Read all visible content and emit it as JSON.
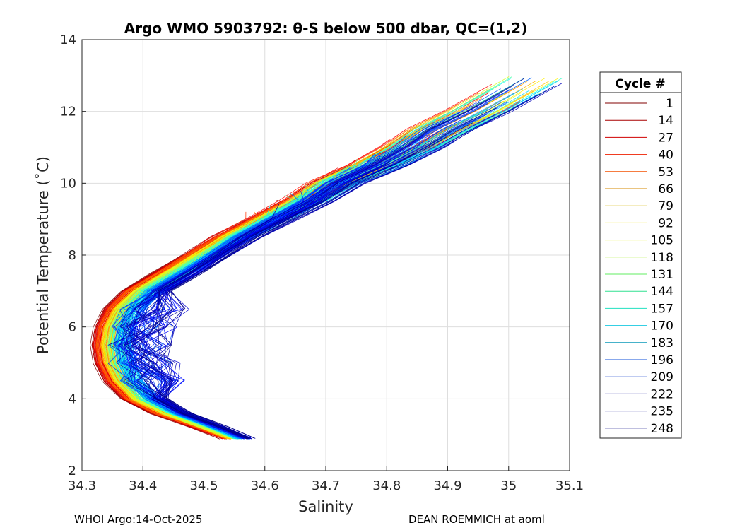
{
  "chart_data": {
    "type": "line",
    "title": "Argo WMO 5903792: θ-S below 500 dbar,  QC=(1,2)",
    "xlabel": "Salinity",
    "ylabel": "Potential Temperature (˚C)",
    "xlim": [
      34.3,
      35.1
    ],
    "ylim": [
      2,
      14
    ],
    "x_ticks": [
      "34.3",
      "34.4",
      "34.5",
      "34.6",
      "34.7",
      "34.8",
      "34.9",
      "35",
      "35.1"
    ],
    "y_ticks": [
      "2",
      "4",
      "6",
      "8",
      "10",
      "12",
      "14"
    ],
    "grid": true,
    "legend": {
      "title": "Cycle #",
      "placement": "right-outside",
      "entries": [
        "1",
        "14",
        "27",
        "40",
        "53",
        "66",
        "79",
        "92",
        "105",
        "118",
        "131",
        "144",
        "157",
        "170",
        "183",
        "196",
        "209",
        "222",
        "235",
        "248"
      ],
      "colors": [
        "#800000",
        "#a80000",
        "#d00000",
        "#ee1f00",
        "#f35000",
        "#d68a00",
        "#d6b400",
        "#f0e000",
        "#dff000",
        "#b0f040",
        "#60ee60",
        "#30e090",
        "#20e0c0",
        "#18c8e0",
        "#0898b8",
        "#1050d8",
        "#0030c8",
        "#000090",
        "#000088",
        "#000080"
      ]
    },
    "series_profile_template": [
      [
        34.6,
        2.65
      ],
      [
        34.57,
        2.9
      ],
      [
        34.52,
        3.2
      ],
      [
        34.45,
        3.6
      ],
      [
        34.4,
        4.0
      ],
      [
        34.37,
        4.5
      ],
      [
        34.355,
        5.0
      ],
      [
        34.35,
        5.5
      ],
      [
        34.355,
        6.0
      ],
      [
        34.37,
        6.5
      ],
      [
        34.4,
        7.0
      ],
      [
        34.45,
        7.5
      ],
      [
        34.5,
        8.0
      ],
      [
        34.55,
        8.5
      ],
      [
        34.61,
        9.0
      ],
      [
        34.67,
        9.5
      ],
      [
        34.72,
        10.0
      ],
      [
        34.79,
        10.5
      ],
      [
        34.85,
        11.0
      ],
      [
        34.9,
        11.5
      ],
      [
        34.96,
        12.0
      ],
      [
        35.06,
        12.95
      ]
    ],
    "num_cycles": 248
  },
  "footer": {
    "left": "WHOI Argo:14-Oct-2025",
    "right": "DEAN ROEMMICH at aoml"
  }
}
